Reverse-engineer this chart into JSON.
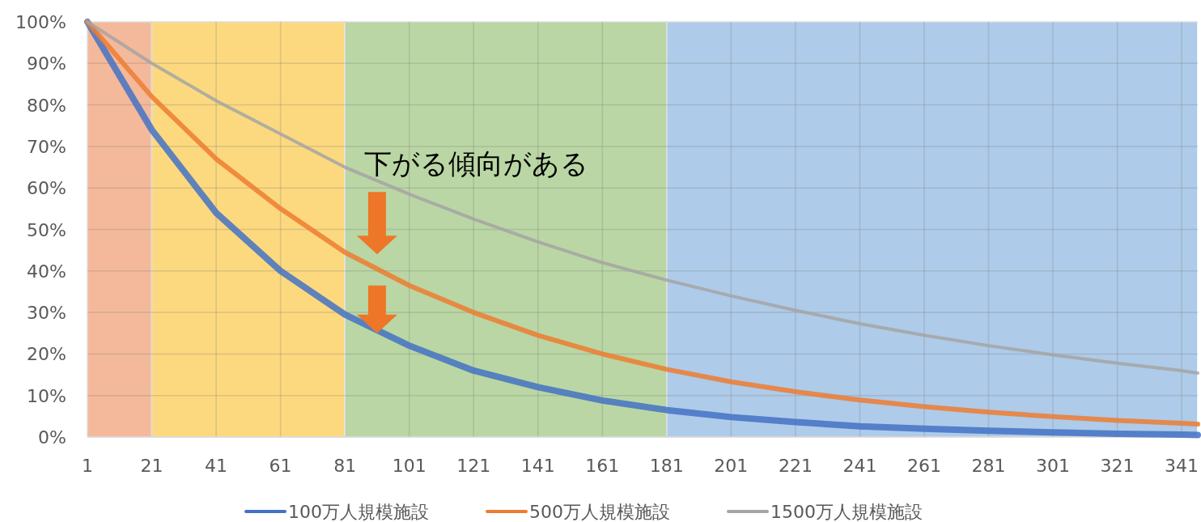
{
  "chart_data": {
    "type": "line",
    "xlim": [
      1,
      346
    ],
    "xticks": [
      1,
      21,
      41,
      61,
      81,
      101,
      121,
      141,
      161,
      181,
      201,
      221,
      241,
      261,
      281,
      301,
      321,
      341
    ],
    "ylim": [
      0,
      100
    ],
    "yticks": [
      {
        "value": 0,
        "label": "0%"
      },
      {
        "value": 10,
        "label": "10%"
      },
      {
        "value": 20,
        "label": "20%"
      },
      {
        "value": 30,
        "label": "30%"
      },
      {
        "value": 40,
        "label": "40%"
      },
      {
        "value": 50,
        "label": "50%"
      },
      {
        "value": 60,
        "label": "60%"
      },
      {
        "value": 70,
        "label": "70%"
      },
      {
        "value": 80,
        "label": "80%"
      },
      {
        "value": 90,
        "label": "90%"
      },
      {
        "value": 100,
        "label": "100%"
      }
    ],
    "x": [
      1,
      21,
      41,
      61,
      81,
      101,
      121,
      141,
      161,
      181,
      201,
      221,
      241,
      261,
      281,
      301,
      321,
      341,
      346
    ],
    "series": [
      {
        "name": "100万人規模施設",
        "color": "#4472c4",
        "values": [
          100,
          74,
          54,
          40,
          29.5,
          22,
          16,
          12,
          8.8,
          6.5,
          4.8,
          3.6,
          2.6,
          2,
          1.5,
          1.1,
          0.8,
          0.6,
          0.5
        ]
      },
      {
        "name": "500万人規模施設",
        "color": "#ed7d31",
        "values": [
          100,
          82,
          67,
          55,
          44.5,
          36.5,
          30,
          24.5,
          20,
          16.3,
          13.3,
          10.9,
          8.9,
          7.3,
          6,
          4.9,
          4,
          3.3,
          3.1
        ]
      },
      {
        "name": "1500万人規模施設",
        "color": "#a5a5a5",
        "values": [
          100,
          90,
          81,
          73,
          65,
          58.5,
          52.5,
          47,
          42,
          37.8,
          34,
          30.5,
          27.3,
          24.5,
          22,
          19.8,
          17.8,
          16,
          15.4
        ]
      }
    ],
    "bands": [
      {
        "axis": "x",
        "from": 1,
        "to": 21,
        "color": "#f4b99a"
      },
      {
        "axis": "x",
        "from": 21,
        "to": 81,
        "color": "#fcd97f"
      },
      {
        "axis": "x",
        "from": 81,
        "to": 181,
        "color": "#bad6a4"
      },
      {
        "axis": "x",
        "from": 181,
        "to": 346,
        "color": "#aecbe9"
      }
    ],
    "annotations": [
      "下がる傾向がある"
    ],
    "grid": true,
    "legend": "bottom",
    "marker": "none",
    "line_style": "solid"
  }
}
